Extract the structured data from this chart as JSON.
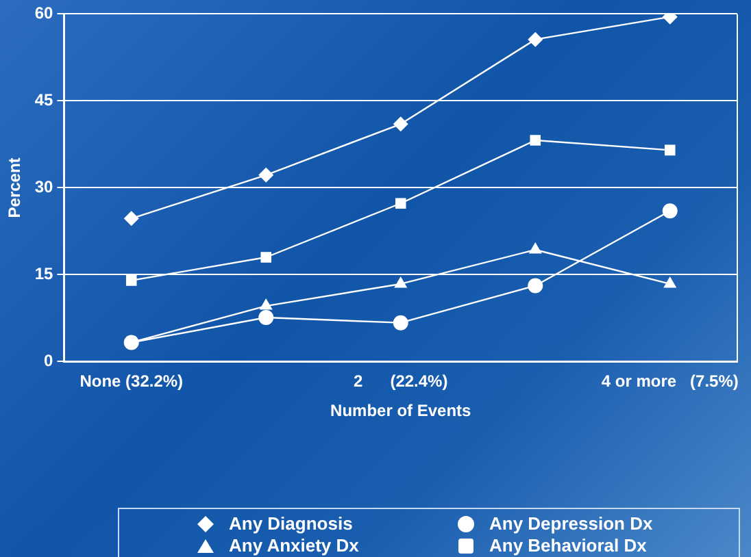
{
  "chart_data": {
    "type": "line",
    "xlabel": "Number of Events",
    "ylabel": "Percent",
    "categories": [
      "None (32.2%)",
      null,
      "2      (22.4%)",
      null,
      "4 or more   (7.5%)"
    ],
    "series": [
      {
        "name": "Any Diagnosis",
        "color": "#ffffff",
        "marker": "diamond",
        "values": [
          24.7,
          32.2,
          41,
          55.6,
          59.5
        ]
      },
      {
        "name": "Any Depression Dx",
        "color": "#ffffff",
        "marker": "circle",
        "values": [
          3.3,
          7.6,
          6.7,
          13.1,
          26
        ]
      },
      {
        "name": "Any Anxiety Dx",
        "color": "#ffffff",
        "marker": "triangle",
        "values": [
          3.3,
          9.6,
          13.4,
          19.3,
          13.4
        ]
      },
      {
        "name": "Any Behavioral Dx",
        "color": "#ffffff",
        "marker": "square",
        "values": [
          14,
          18,
          27.3,
          38.2,
          36.5
        ]
      }
    ],
    "ylim": [
      0,
      60
    ],
    "yticks": [
      0,
      15,
      30,
      45,
      60
    ],
    "grid": "y",
    "legend": "bottom",
    "line_style": "solid"
  }
}
